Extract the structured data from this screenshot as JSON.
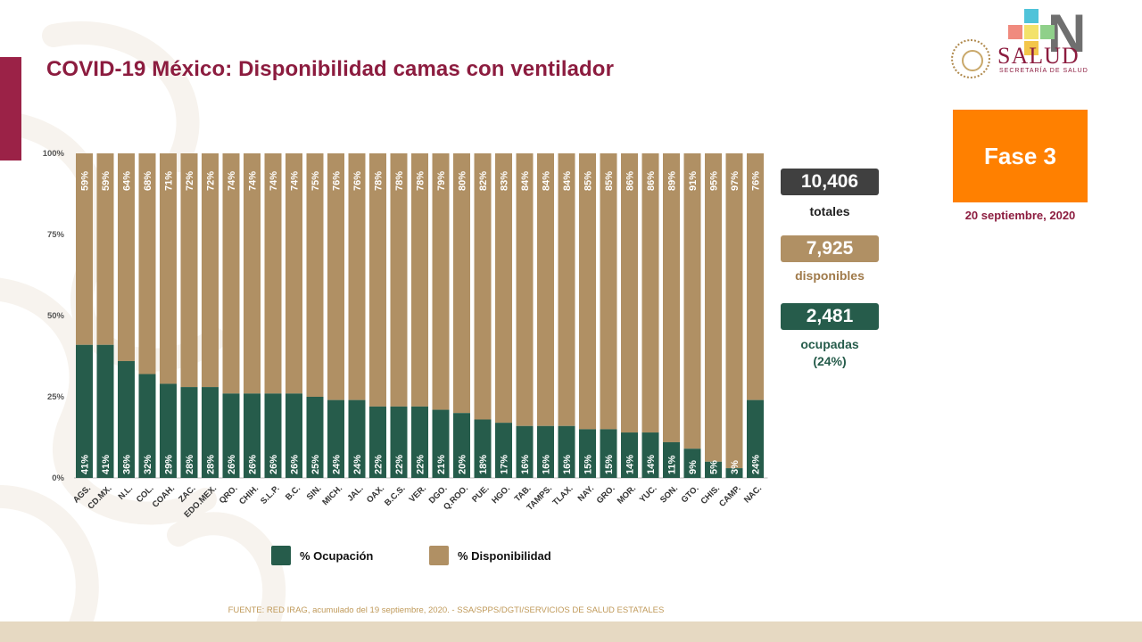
{
  "title": "COVID-19 México: Disponibilidad camas con ventilador",
  "logo": {
    "word": "SALUD",
    "sub": "SECRETARÍA DE SALUD"
  },
  "phase": {
    "label": "Fase 3",
    "date": "20 septiembre, 2020"
  },
  "stats": {
    "total_value": "10,406",
    "total_label": "totales",
    "available_value": "7,925",
    "available_label": "disponibles",
    "occupied_value": "2,481",
    "occupied_label": "ocupadas",
    "occupied_pct": "(24%)"
  },
  "colors": {
    "occupied": "#265c4b",
    "available": "#b09064",
    "title": "#8c1c3f",
    "phase": "#ff8000",
    "total": "#404040"
  },
  "legend": {
    "occupied": "% Ocupación",
    "available": "% Disponibilidad"
  },
  "source": "FUENTE: RED IRAG, acumulado del 19 septiembre, 2020. -  SSA/SPPS/DGTI/SERVICIOS DE SALUD ESTATALES",
  "chart_data": {
    "type": "bar",
    "stacked": true,
    "title": "COVID-19 México: Disponibilidad camas con ventilador",
    "xlabel": "",
    "ylabel": "",
    "ylim": [
      0,
      100
    ],
    "yticks": [
      "0%",
      "25%",
      "50%",
      "75%",
      "100%"
    ],
    "categories": [
      "AGS.",
      "CD.MX.",
      "N.L.",
      "COL.",
      "COAH.",
      "ZAC.",
      "EDO.MEX.",
      "QRO.",
      "CHIH.",
      "S.L.P.",
      "B.C.",
      "SIN.",
      "MICH.",
      "JAL.",
      "OAX.",
      "B.C.S.",
      "VER.",
      "DGO.",
      "Q.ROO.",
      "PUE.",
      "HGO.",
      "TAB.",
      "TAMPS.",
      "TLAX.",
      "NAY.",
      "GRO.",
      "MOR.",
      "YUC.",
      "SON.",
      "GTO.",
      "CHIS.",
      "CAMP.",
      "NAC."
    ],
    "series": [
      {
        "name": "% Ocupación",
        "values": [
          41,
          41,
          36,
          32,
          29,
          28,
          28,
          26,
          26,
          26,
          26,
          25,
          24,
          24,
          22,
          22,
          22,
          21,
          20,
          18,
          17,
          16,
          16,
          16,
          15,
          15,
          14,
          14,
          11,
          9,
          5,
          3,
          24
        ]
      },
      {
        "name": "% Disponibilidad",
        "values": [
          59,
          59,
          64,
          68,
          71,
          72,
          72,
          74,
          74,
          74,
          74,
          75,
          76,
          76,
          78,
          78,
          78,
          79,
          80,
          82,
          83,
          84,
          84,
          84,
          85,
          85,
          86,
          86,
          89,
          91,
          95,
          97,
          76
        ]
      }
    ]
  }
}
